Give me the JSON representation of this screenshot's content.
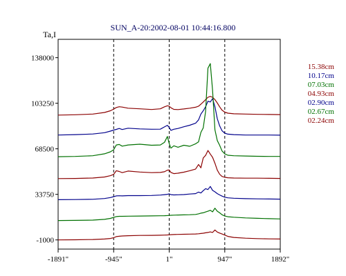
{
  "chart_data": {
    "type": "line",
    "title": "SUN_A-20:2002-08-01 10:44:16.800",
    "ylabel": "Ta,I",
    "xlim": [
      -1891,
      1892
    ],
    "ylim": [
      -8000,
      152000
    ],
    "x_tick_labels": [
      "-1891\"",
      "-945\"",
      "1\"",
      "947\"",
      "1892\""
    ],
    "x_tick_values": [
      -1891,
      -945,
      1,
      947,
      1892
    ],
    "y_tick_labels": [
      "138000",
      "103250",
      "68500",
      "33750",
      "-1000"
    ],
    "y_tick_values": [
      138000,
      103250,
      68500,
      33750,
      -1000
    ],
    "vlines": [
      -945,
      1,
      947
    ],
    "grid": false,
    "legend_position": "right",
    "x": [
      -1891,
      -1600,
      -1300,
      -1100,
      -1000,
      -945,
      -900,
      -850,
      -800,
      -700,
      -500,
      -300,
      -150,
      -80,
      -30,
      1,
      30,
      80,
      150,
      250,
      350,
      450,
      500,
      540,
      580,
      620,
      660,
      700,
      740,
      780,
      820,
      860,
      900,
      947,
      1000,
      1100,
      1300,
      1500,
      1700,
      1892
    ],
    "series": [
      {
        "name": "15.38cm",
        "color": "#8b0000",
        "values": [
          94200,
          94500,
          95000,
          96200,
          97500,
          98800,
          100000,
          100600,
          100300,
          99500,
          99000,
          98500,
          99000,
          100500,
          101300,
          101000,
          99800,
          98600,
          98400,
          98900,
          99500,
          100200,
          101000,
          102500,
          104200,
          106000,
          107800,
          108500,
          107800,
          106000,
          103500,
          100500,
          98000,
          96500,
          95700,
          95200,
          95000,
          94800,
          94700,
          94600
        ]
      },
      {
        "name": "10.17cm",
        "color": "#00008b",
        "values": [
          79000,
          79300,
          79800,
          80800,
          82000,
          82800,
          83300,
          84000,
          83200,
          84200,
          83700,
          83400,
          83500,
          85200,
          86400,
          84800,
          82600,
          83400,
          84000,
          85300,
          86500,
          88000,
          90500,
          95000,
          97500,
          100500,
          104800,
          104200,
          106800,
          100500,
          91500,
          86000,
          82300,
          80400,
          79700,
          79300,
          79000,
          79000,
          79000,
          78900
        ]
      },
      {
        "name": "07.03cm",
        "color": "#007000",
        "values": [
          62500,
          62700,
          63200,
          64700,
          66200,
          67800,
          71400,
          71800,
          70500,
          71400,
          72000,
          71200,
          71400,
          73500,
          77900,
          72500,
          69000,
          70800,
          69700,
          71200,
          70400,
          72300,
          73800,
          81000,
          84500,
          97000,
          130000,
          133500,
          113000,
          83000,
          74800,
          71200,
          66900,
          64700,
          63600,
          63200,
          63000,
          62800,
          62700,
          62700
        ]
      },
      {
        "name": "04.93cm",
        "color": "#8b0000",
        "values": [
          45800,
          45900,
          46200,
          47000,
          48000,
          49000,
          51800,
          51200,
          50300,
          51500,
          50800,
          50300,
          50500,
          51000,
          52200,
          52300,
          50500,
          49600,
          49900,
          50700,
          51800,
          53000,
          56500,
          54000,
          61500,
          63500,
          67200,
          64500,
          62000,
          57500,
          52200,
          49100,
          47400,
          46800,
          46400,
          46200,
          46100,
          46100,
          46000,
          45900
        ]
      },
      {
        "name": "02.90cm",
        "color": "#00008b",
        "values": [
          29700,
          29800,
          30000,
          30600,
          31300,
          32000,
          32600,
          32700,
          32600,
          32800,
          32800,
          32900,
          33200,
          33500,
          33800,
          34100,
          33500,
          33300,
          33400,
          33600,
          34000,
          34300,
          35500,
          34800,
          36600,
          38100,
          37400,
          39800,
          36800,
          35700,
          34300,
          33300,
          32400,
          31600,
          31100,
          30800,
          30500,
          30300,
          30200,
          30100
        ]
      },
      {
        "name": "02.67cm",
        "color": "#007000",
        "values": [
          13800,
          13900,
          14100,
          14700,
          15400,
          16200,
          16800,
          17000,
          17000,
          17100,
          17200,
          17300,
          17400,
          17500,
          17600,
          17700,
          17800,
          17900,
          18000,
          18100,
          18200,
          18400,
          18900,
          19400,
          19700,
          20300,
          20900,
          21600,
          20400,
          23200,
          20900,
          19700,
          18200,
          17200,
          16700,
          16300,
          15800,
          15500,
          15200,
          15000
        ]
      },
      {
        "name": "02.24cm",
        "color": "#8b0000",
        "values": [
          -1000,
          -900,
          -700,
          -300,
          100,
          700,
          1500,
          1800,
          2000,
          2200,
          2400,
          2500,
          2600,
          2700,
          2800,
          2900,
          3000,
          3100,
          3200,
          3300,
          3400,
          3500,
          3700,
          3900,
          4100,
          4400,
          4700,
          5100,
          4700,
          6600,
          5000,
          4200,
          3500,
          2700,
          1700,
          900,
          300,
          0,
          -200,
          -300
        ]
      }
    ]
  }
}
